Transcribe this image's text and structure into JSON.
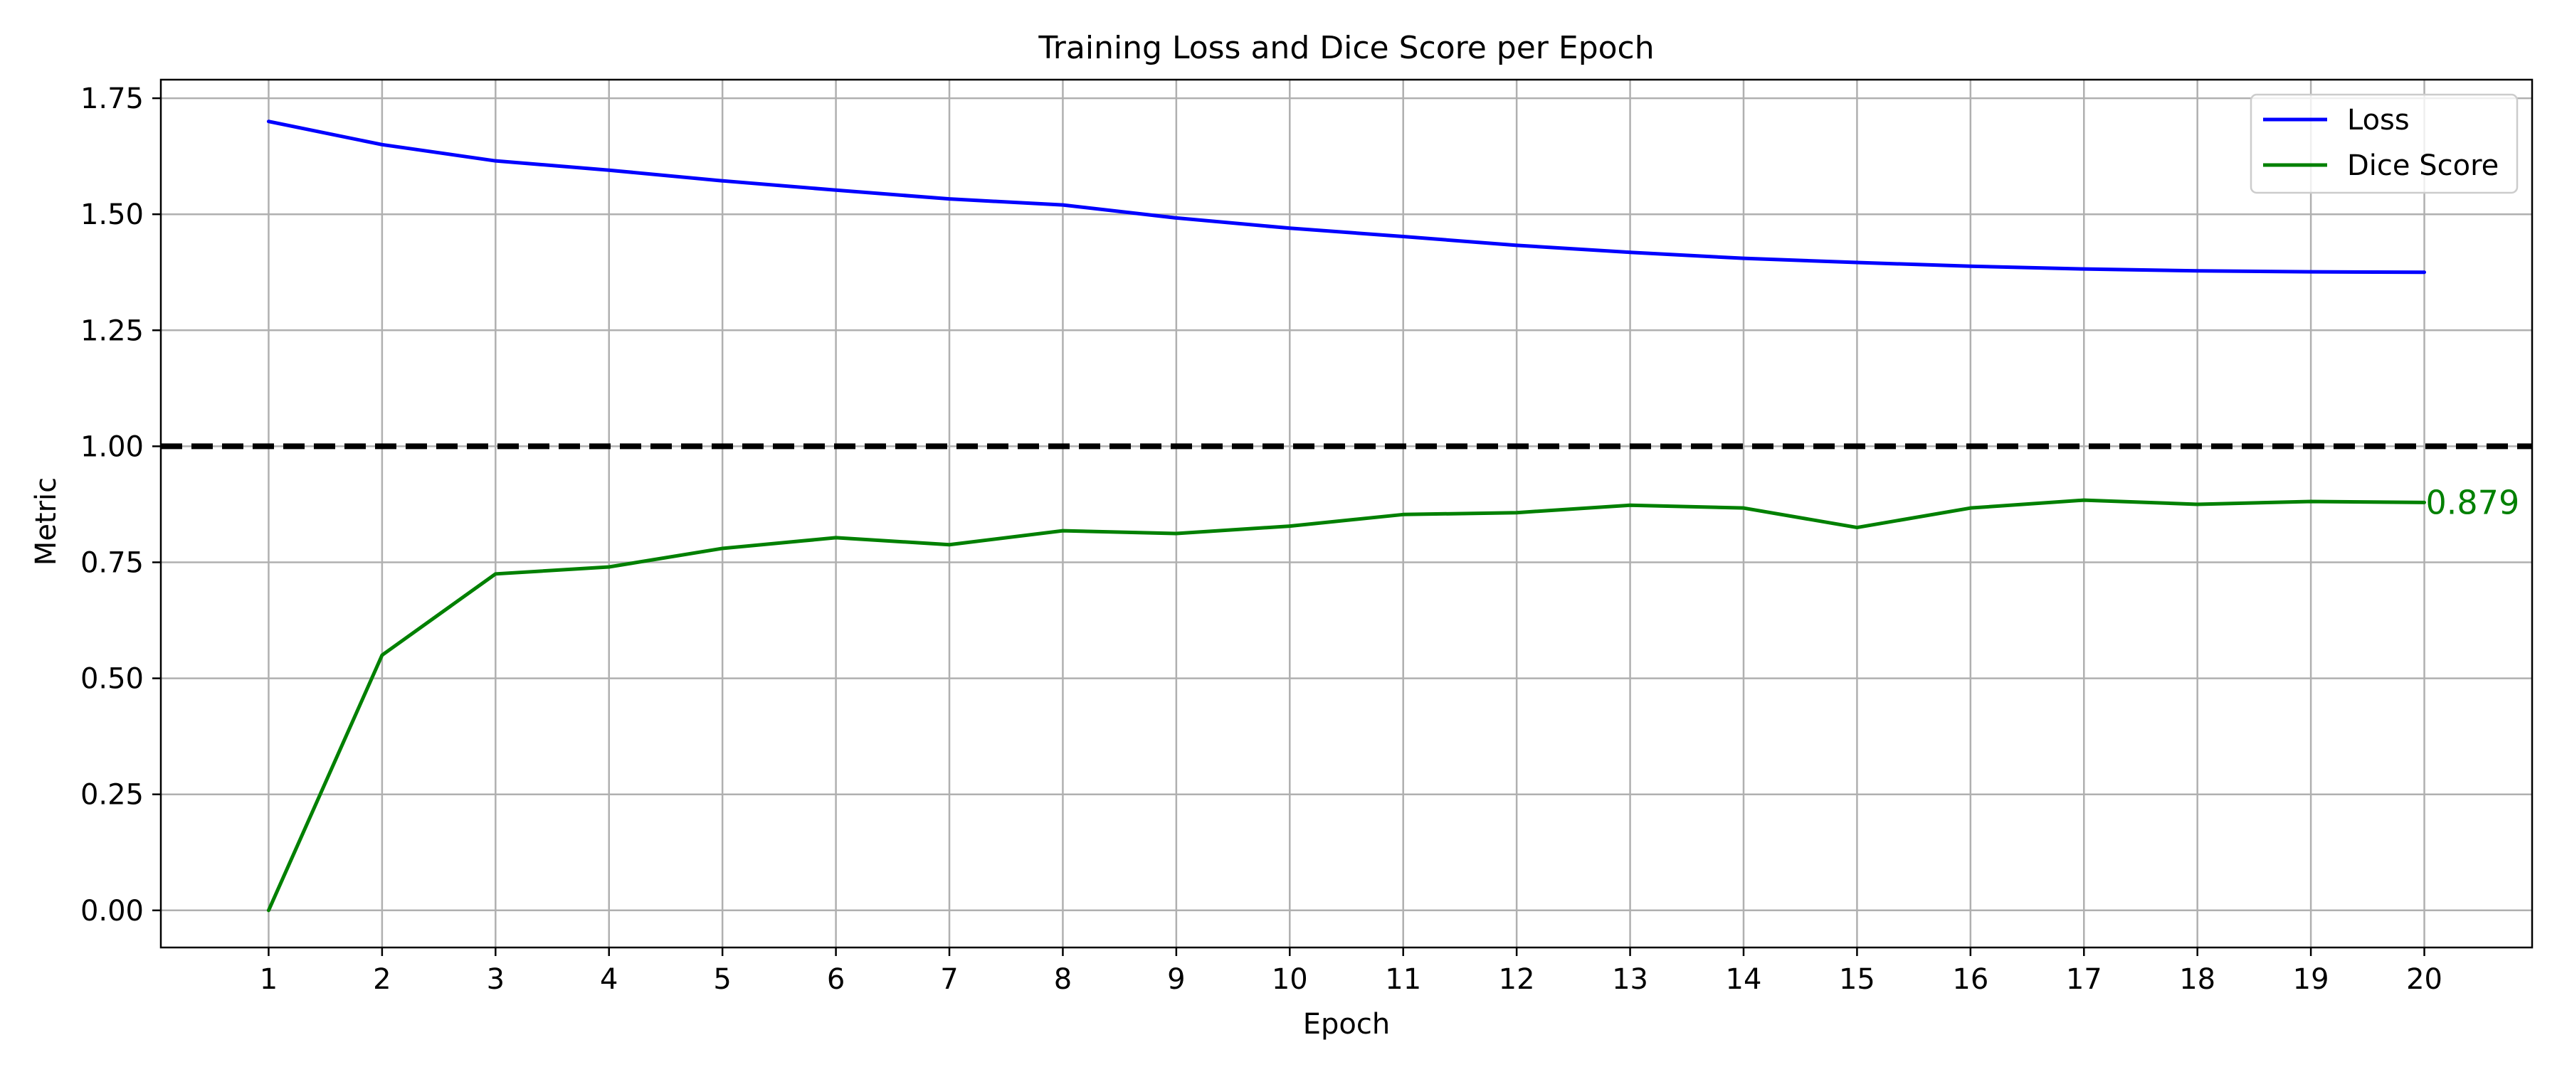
{
  "chart_data": {
    "type": "line",
    "title": "Training Loss and Dice Score per Epoch",
    "xlabel": "Epoch",
    "ylabel": "Metric",
    "x": [
      1,
      2,
      3,
      4,
      5,
      6,
      7,
      8,
      9,
      10,
      11,
      12,
      13,
      14,
      15,
      16,
      17,
      18,
      19,
      20
    ],
    "xlim": [
      0.05,
      20.95
    ],
    "ylim": [
      -0.08,
      1.79
    ],
    "yticks": [
      0.0,
      0.25,
      0.5,
      0.75,
      1.0,
      1.25,
      1.5,
      1.75
    ],
    "ytick_labels": [
      "0.00",
      "0.25",
      "0.50",
      "0.75",
      "1.00",
      "1.25",
      "1.50",
      "1.75"
    ],
    "grid": true,
    "legend_position": "top-right",
    "series": [
      {
        "name": "Loss",
        "color": "#0000ff",
        "values": [
          1.7,
          1.65,
          1.615,
          1.595,
          1.572,
          1.552,
          1.533,
          1.52,
          1.492,
          1.47,
          1.452,
          1.433,
          1.418,
          1.405,
          1.396,
          1.388,
          1.382,
          1.378,
          1.376,
          1.375
        ]
      },
      {
        "name": "Dice Score",
        "color": "#008000",
        "values": [
          0.0,
          0.55,
          0.725,
          0.74,
          0.78,
          0.803,
          0.788,
          0.818,
          0.812,
          0.828,
          0.853,
          0.857,
          0.873,
          0.867,
          0.825,
          0.867,
          0.884,
          0.875,
          0.881,
          0.879
        ]
      }
    ],
    "reference_line": {
      "y": 1.0,
      "style": "dashed",
      "color": "#000000"
    },
    "annotations": [
      {
        "text": "0.879",
        "x": 20,
        "y": 0.879,
        "color": "#008000"
      }
    ]
  }
}
